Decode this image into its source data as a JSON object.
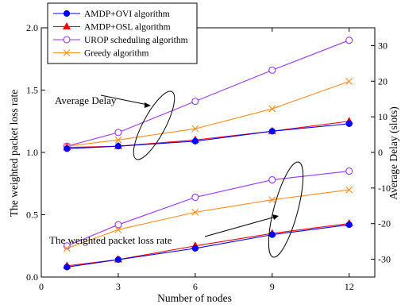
{
  "chart_data": {
    "type": "line",
    "x": [
      1,
      3,
      6,
      9,
      12
    ],
    "xticks": [
      0,
      3,
      6,
      9,
      12
    ],
    "xlim": [
      0,
      13
    ],
    "xlabel": "Number of nodes",
    "ylabel_left": "The weighted packet loss rate",
    "ylabel_right": "Average Delay (slots)",
    "ylim_left": [
      0,
      2.0
    ],
    "yticks_left": [
      "0.0",
      "0.5",
      "1.0",
      "1.5",
      "2.0"
    ],
    "ylim_right": [
      -35,
      35
    ],
    "yticks_right": [
      "-30",
      "-20",
      "-10",
      "0",
      "10",
      "20",
      "30"
    ],
    "legend_position": "top-left",
    "series": [
      {
        "name": "AMDP+OVI algorithm",
        "marker": "filled-circle",
        "color": "#0000ff",
        "axis": "left",
        "group": "delay",
        "values": [
          1.03,
          1.05,
          1.09,
          1.17,
          1.23
        ]
      },
      {
        "name": "AMDP+OSL algorithm",
        "marker": "filled-triangle",
        "color": "#ff0000",
        "axis": "left",
        "group": "delay",
        "values": [
          1.04,
          1.05,
          1.1,
          1.17,
          1.25
        ]
      },
      {
        "name": "UROP scheduling algorithm",
        "marker": "open-circle",
        "color": "#9933ff",
        "axis": "left",
        "group": "delay",
        "values": [
          1.05,
          1.16,
          1.41,
          1.66,
          1.9
        ]
      },
      {
        "name": "Greedy algorithm",
        "marker": "x-cross",
        "color": "#ff8c1a",
        "axis": "left",
        "group": "delay",
        "values": [
          1.05,
          1.1,
          1.19,
          1.35,
          1.57
        ]
      },
      {
        "name": "AMDP+OVI algorithm",
        "marker": "filled-circle",
        "color": "#0000ff",
        "axis": "left",
        "group": "loss",
        "values": [
          0.08,
          0.14,
          0.23,
          0.34,
          0.42
        ]
      },
      {
        "name": "AMDP+OSL algorithm",
        "marker": "filled-triangle",
        "color": "#ff0000",
        "axis": "left",
        "group": "loss",
        "values": [
          0.09,
          0.14,
          0.25,
          0.35,
          0.43
        ]
      },
      {
        "name": "UROP scheduling algorithm",
        "marker": "open-circle",
        "color": "#9933ff",
        "axis": "left",
        "group": "loss",
        "values": [
          0.25,
          0.42,
          0.64,
          0.78,
          0.85
        ]
      },
      {
        "name": "Greedy algorithm",
        "marker": "x-cross",
        "color": "#ff8c1a",
        "axis": "left",
        "group": "loss",
        "values": [
          0.23,
          0.38,
          0.52,
          0.62,
          0.7
        ]
      }
    ],
    "legend": [
      "AMDP+OVI algorithm",
      "AMDP+OSL algorithm",
      "UROP scheduling algorithm",
      "Greedy algorithm"
    ],
    "annotations": [
      {
        "text": "Average Delay",
        "target_x": 4.5,
        "target_y": 1.18
      },
      {
        "text": "The weighted packet loss rate",
        "target_x": 8.2,
        "target_y": 0.45
      }
    ]
  }
}
